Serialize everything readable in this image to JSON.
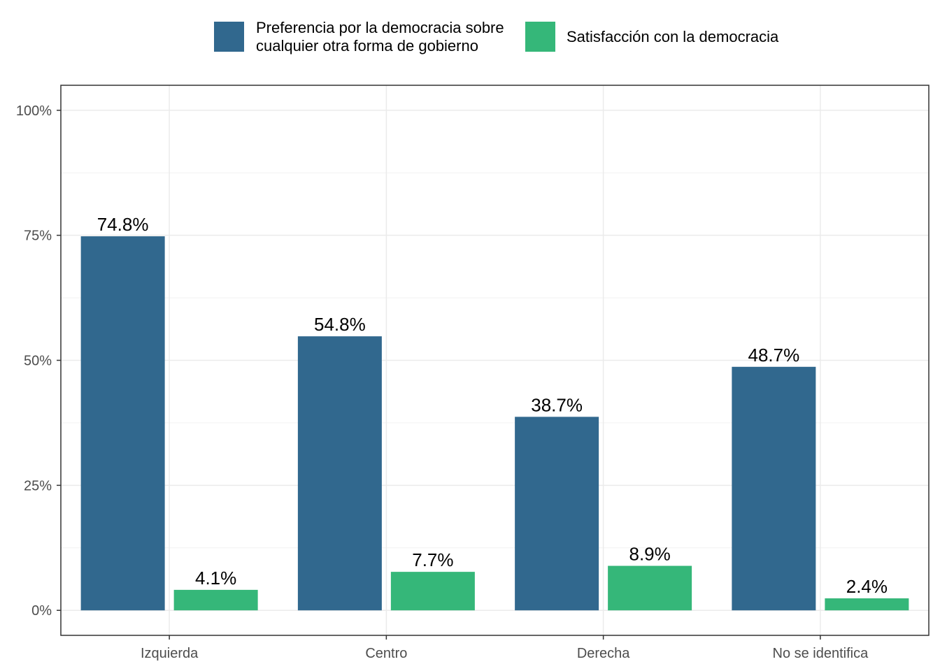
{
  "chart_data": {
    "type": "bar",
    "categories": [
      "Izquierda",
      "Centro",
      "Derecha",
      "No se identifica"
    ],
    "series": [
      {
        "name": "Preferencia por la democracia sobre cualquier otra forma de gobierno",
        "name_lines": [
          "Preferencia por la democracia sobre",
          "cualquier otra forma de gobierno"
        ],
        "color": "#31688E",
        "values": [
          74.8,
          54.8,
          38.7,
          48.7
        ],
        "labels": [
          "74.8%",
          "54.8%",
          "38.7%",
          "48.7%"
        ]
      },
      {
        "name": "Satisfacción con la democracia",
        "name_lines": [
          "Satisfacción con la democracia"
        ],
        "color": "#35B779",
        "values": [
          4.1,
          7.7,
          8.9,
          2.4
        ],
        "labels": [
          "4.1%",
          "7.7%",
          "8.9%",
          "2.4%"
        ]
      }
    ],
    "yticks": [
      0,
      25,
      50,
      75,
      100
    ],
    "ytick_labels": [
      "0%",
      "25%",
      "50%",
      "75%",
      "100%"
    ],
    "ylim": [
      -5,
      105
    ],
    "grid": true,
    "legend_position": "top"
  }
}
